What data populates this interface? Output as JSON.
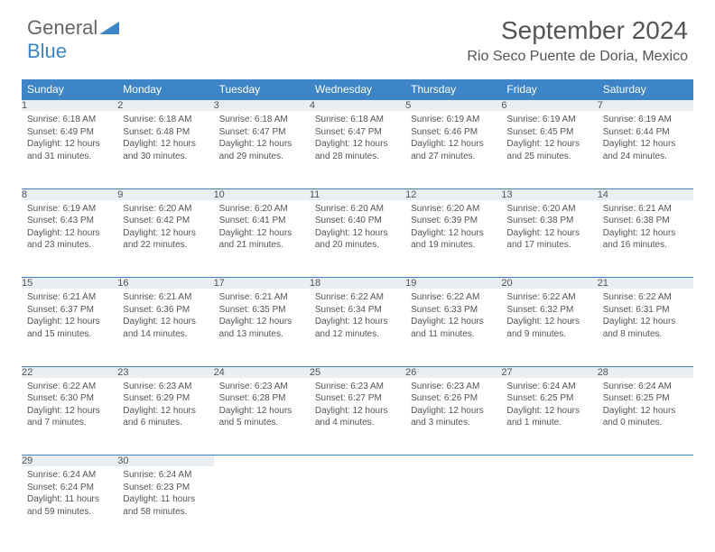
{
  "logo": {
    "part1": "General",
    "part2": "Blue"
  },
  "title": "September 2024",
  "location": "Rio Seco Puente de Doria, Mexico",
  "colors": {
    "header_bg": "#3d85c6",
    "header_fg": "#ffffff",
    "daynum_bg": "#e8eef2",
    "text": "#555555",
    "border": "#3d85c6",
    "page_bg": "#ffffff"
  },
  "weekdays": [
    "Sunday",
    "Monday",
    "Tuesday",
    "Wednesday",
    "Thursday",
    "Friday",
    "Saturday"
  ],
  "weeks": [
    [
      {
        "d": "1",
        "sr": "6:18 AM",
        "ss": "6:49 PM",
        "dl": "12 hours and 31 minutes."
      },
      {
        "d": "2",
        "sr": "6:18 AM",
        "ss": "6:48 PM",
        "dl": "12 hours and 30 minutes."
      },
      {
        "d": "3",
        "sr": "6:18 AM",
        "ss": "6:47 PM",
        "dl": "12 hours and 29 minutes."
      },
      {
        "d": "4",
        "sr": "6:18 AM",
        "ss": "6:47 PM",
        "dl": "12 hours and 28 minutes."
      },
      {
        "d": "5",
        "sr": "6:19 AM",
        "ss": "6:46 PM",
        "dl": "12 hours and 27 minutes."
      },
      {
        "d": "6",
        "sr": "6:19 AM",
        "ss": "6:45 PM",
        "dl": "12 hours and 25 minutes."
      },
      {
        "d": "7",
        "sr": "6:19 AM",
        "ss": "6:44 PM",
        "dl": "12 hours and 24 minutes."
      }
    ],
    [
      {
        "d": "8",
        "sr": "6:19 AM",
        "ss": "6:43 PM",
        "dl": "12 hours and 23 minutes."
      },
      {
        "d": "9",
        "sr": "6:20 AM",
        "ss": "6:42 PM",
        "dl": "12 hours and 22 minutes."
      },
      {
        "d": "10",
        "sr": "6:20 AM",
        "ss": "6:41 PM",
        "dl": "12 hours and 21 minutes."
      },
      {
        "d": "11",
        "sr": "6:20 AM",
        "ss": "6:40 PM",
        "dl": "12 hours and 20 minutes."
      },
      {
        "d": "12",
        "sr": "6:20 AM",
        "ss": "6:39 PM",
        "dl": "12 hours and 19 minutes."
      },
      {
        "d": "13",
        "sr": "6:20 AM",
        "ss": "6:38 PM",
        "dl": "12 hours and 17 minutes."
      },
      {
        "d": "14",
        "sr": "6:21 AM",
        "ss": "6:38 PM",
        "dl": "12 hours and 16 minutes."
      }
    ],
    [
      {
        "d": "15",
        "sr": "6:21 AM",
        "ss": "6:37 PM",
        "dl": "12 hours and 15 minutes."
      },
      {
        "d": "16",
        "sr": "6:21 AM",
        "ss": "6:36 PM",
        "dl": "12 hours and 14 minutes."
      },
      {
        "d": "17",
        "sr": "6:21 AM",
        "ss": "6:35 PM",
        "dl": "12 hours and 13 minutes."
      },
      {
        "d": "18",
        "sr": "6:22 AM",
        "ss": "6:34 PM",
        "dl": "12 hours and 12 minutes."
      },
      {
        "d": "19",
        "sr": "6:22 AM",
        "ss": "6:33 PM",
        "dl": "12 hours and 11 minutes."
      },
      {
        "d": "20",
        "sr": "6:22 AM",
        "ss": "6:32 PM",
        "dl": "12 hours and 9 minutes."
      },
      {
        "d": "21",
        "sr": "6:22 AM",
        "ss": "6:31 PM",
        "dl": "12 hours and 8 minutes."
      }
    ],
    [
      {
        "d": "22",
        "sr": "6:22 AM",
        "ss": "6:30 PM",
        "dl": "12 hours and 7 minutes."
      },
      {
        "d": "23",
        "sr": "6:23 AM",
        "ss": "6:29 PM",
        "dl": "12 hours and 6 minutes."
      },
      {
        "d": "24",
        "sr": "6:23 AM",
        "ss": "6:28 PM",
        "dl": "12 hours and 5 minutes."
      },
      {
        "d": "25",
        "sr": "6:23 AM",
        "ss": "6:27 PM",
        "dl": "12 hours and 4 minutes."
      },
      {
        "d": "26",
        "sr": "6:23 AM",
        "ss": "6:26 PM",
        "dl": "12 hours and 3 minutes."
      },
      {
        "d": "27",
        "sr": "6:24 AM",
        "ss": "6:25 PM",
        "dl": "12 hours and 1 minute."
      },
      {
        "d": "28",
        "sr": "6:24 AM",
        "ss": "6:25 PM",
        "dl": "12 hours and 0 minutes."
      }
    ],
    [
      {
        "d": "29",
        "sr": "6:24 AM",
        "ss": "6:24 PM",
        "dl": "11 hours and 59 minutes."
      },
      {
        "d": "30",
        "sr": "6:24 AM",
        "ss": "6:23 PM",
        "dl": "11 hours and 58 minutes."
      },
      null,
      null,
      null,
      null,
      null
    ]
  ],
  "labels": {
    "sunrise": "Sunrise:",
    "sunset": "Sunset:",
    "daylight": "Daylight:"
  }
}
